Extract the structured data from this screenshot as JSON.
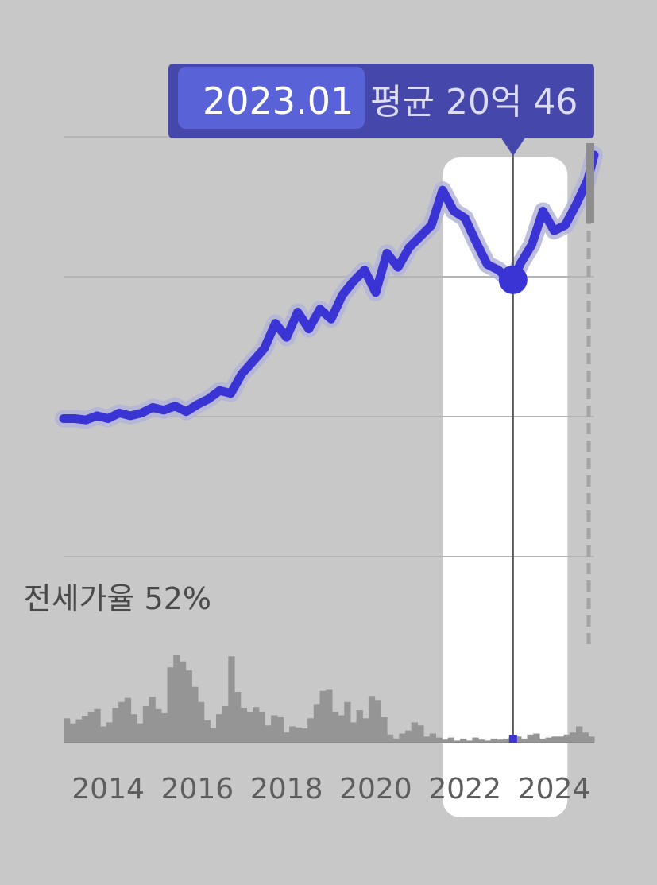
{
  "tooltip": {
    "date": "2023.01",
    "value_text": "평균 20억 46"
  },
  "jeonse_rate_text": "전세가율 52%",
  "colors": {
    "background": "#c8c8c8",
    "price_line": "#3b34d4",
    "price_band": "#b3b3d9",
    "volume_bars": "#959595",
    "tooltip_bg": "#4548aa",
    "tooltip_date_bg": "#5a62d8",
    "highlight": "#ffffff",
    "cursor_line": "#555555",
    "grid": "#b5b5b5"
  },
  "chart_data": {
    "type": "line",
    "x_ticks": [
      "2014",
      "2016",
      "2018",
      "2020",
      "2022",
      "2024"
    ],
    "x_range": [
      2013.0,
      2024.9
    ],
    "highlight_range": [
      2021.5,
      2024.3
    ],
    "cursor": {
      "x": 2023.08,
      "label": "2023.01"
    },
    "series": [
      {
        "x": [
          2013.0,
          2013.25,
          2013.5,
          2013.75,
          2014.0,
          2014.25,
          2014.5,
          2014.75,
          2015.0,
          2015.25,
          2015.5,
          2015.75,
          2016.0,
          2016.25,
          2016.5,
          2016.75,
          2017.0,
          2017.25,
          2017.5,
          2017.75,
          2018.0,
          2018.25,
          2018.5,
          2018.75,
          2019.0,
          2019.25,
          2019.5,
          2019.75,
          2020.0,
          2020.25,
          2020.5,
          2020.75,
          2021.0,
          2021.25,
          2021.5,
          2021.75,
          2022.0,
          2022.25,
          2022.5,
          2022.75,
          2023.0,
          2023.08,
          2023.25,
          2023.5,
          2023.75,
          2024.0,
          2024.25,
          2024.5,
          2024.75,
          2024.9
        ],
        "y": [
          0.2,
          0.2,
          0.1,
          0.4,
          0.2,
          0.6,
          0.4,
          0.6,
          1.0,
          0.8,
          1.1,
          0.7,
          1.2,
          1.6,
          2.2,
          2.0,
          3.4,
          4.3,
          5.2,
          7.0,
          6.0,
          7.8,
          6.6,
          8.0,
          7.3,
          9.0,
          10.0,
          10.8,
          9.2,
          12.0,
          11.0,
          12.4,
          13.2,
          14.0,
          16.5,
          15.0,
          14.5,
          12.8,
          11.2,
          10.8,
          10.1,
          10.1,
          11.3,
          12.6,
          15.0,
          13.6,
          14.0,
          15.5,
          17.2,
          19.0
        ]
      }
    ],
    "volume_bars": [
      2.4,
      1.9,
      2.3,
      2.6,
      3.0,
      3.3,
      1.6,
      2.0,
      3.4,
      4.0,
      4.4,
      2.8,
      1.9,
      3.6,
      4.5,
      3.3,
      2.9,
      7.4,
      8.6,
      8.0,
      7.1,
      5.5,
      4.0,
      2.2,
      1.4,
      2.8,
      3.6,
      8.5,
      5.0,
      3.4,
      3.0,
      3.5,
      3.0,
      1.7,
      2.7,
      2.5,
      1.0,
      1.6,
      1.5,
      1.4,
      2.4,
      3.8,
      5.1,
      5.2,
      3.0,
      2.7,
      4.0,
      2.0,
      3.2,
      2.4,
      4.6,
      4.2,
      2.5,
      0.8,
      0.4,
      0.9,
      1.2,
      2.0,
      1.7,
      0.6,
      0.9,
      0.5,
      0.3,
      0.5,
      0.2,
      0.4,
      0.2,
      0.5,
      0.3,
      0.2,
      0.4,
      0.3,
      0.4,
      0.5,
      0.6,
      0.4,
      0.8,
      0.9,
      0.4,
      0.5,
      0.6,
      0.6,
      0.8,
      1.0,
      1.6,
      1.0,
      0.6
    ]
  }
}
